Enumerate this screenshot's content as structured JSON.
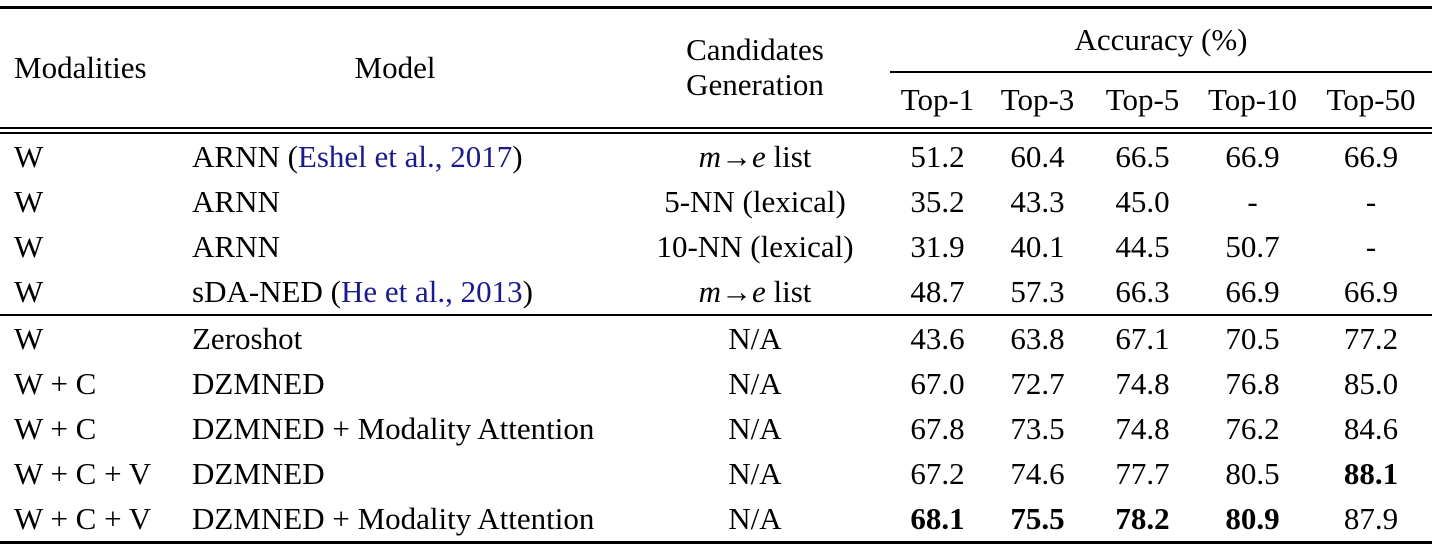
{
  "colors": {
    "background": "#ffffff",
    "text": "#000000",
    "rule": "#000000",
    "citation_link": "#1A1A8C"
  },
  "table": {
    "header": {
      "modalities": "Modalities",
      "model": "Model",
      "candidates_line1": "Candidates",
      "candidates_line2": "Generation",
      "accuracy": "Accuracy (%)",
      "top_columns": [
        "Top-1",
        "Top-3",
        "Top-5",
        "Top-10",
        "Top-50"
      ]
    },
    "rows": [
      {
        "modalities": "W",
        "model_prefix": "ARNN (",
        "model_citation": "Eshel et al., 2017",
        "model_suffix": ")",
        "candidates_parts": [
          {
            "text": "m",
            "italic": true
          },
          {
            "text": "→",
            "italic": false
          },
          {
            "text": "e",
            "italic": true
          },
          {
            "text": " list",
            "italic": false
          }
        ],
        "values": [
          "51.2",
          "60.4",
          "66.5",
          "66.9",
          "66.9"
        ],
        "bold_values": [
          false,
          false,
          false,
          false,
          false
        ],
        "group": 1
      },
      {
        "modalities": "W",
        "model_prefix": "ARNN",
        "model_citation": "",
        "model_suffix": "",
        "candidates_parts": [
          {
            "text": "5-NN (lexical)",
            "italic": false
          }
        ],
        "values": [
          "35.2",
          "43.3",
          "45.0",
          "-",
          "-"
        ],
        "bold_values": [
          false,
          false,
          false,
          false,
          false
        ],
        "group": 1
      },
      {
        "modalities": "W",
        "model_prefix": "ARNN",
        "model_citation": "",
        "model_suffix": "",
        "candidates_parts": [
          {
            "text": "10-NN (lexical)",
            "italic": false
          }
        ],
        "values": [
          "31.9",
          "40.1",
          "44.5",
          "50.7",
          "-"
        ],
        "bold_values": [
          false,
          false,
          false,
          false,
          false
        ],
        "group": 1
      },
      {
        "modalities": "W",
        "model_prefix": "sDA-NED (",
        "model_citation": "He et al., 2013",
        "model_suffix": ")",
        "candidates_parts": [
          {
            "text": "m",
            "italic": true
          },
          {
            "text": "→",
            "italic": false
          },
          {
            "text": "e",
            "italic": true
          },
          {
            "text": " list",
            "italic": false
          }
        ],
        "values": [
          "48.7",
          "57.3",
          "66.3",
          "66.9",
          "66.9"
        ],
        "bold_values": [
          false,
          false,
          false,
          false,
          false
        ],
        "group": 1
      },
      {
        "modalities": "W",
        "model_prefix": "Zeroshot",
        "model_citation": "",
        "model_suffix": "",
        "candidates_parts": [
          {
            "text": "N/A",
            "italic": false
          }
        ],
        "values": [
          "43.6",
          "63.8",
          "67.1",
          "70.5",
          "77.2"
        ],
        "bold_values": [
          false,
          false,
          false,
          false,
          false
        ],
        "group": 2
      },
      {
        "modalities": "W + C",
        "model_prefix": "DZMNED",
        "model_citation": "",
        "model_suffix": "",
        "candidates_parts": [
          {
            "text": "N/A",
            "italic": false
          }
        ],
        "values": [
          "67.0",
          "72.7",
          "74.8",
          "76.8",
          "85.0"
        ],
        "bold_values": [
          false,
          false,
          false,
          false,
          false
        ],
        "group": 2
      },
      {
        "modalities": "W + C",
        "model_prefix": "DZMNED + Modality Attention",
        "model_citation": "",
        "model_suffix": "",
        "candidates_parts": [
          {
            "text": "N/A",
            "italic": false
          }
        ],
        "values": [
          "67.8",
          "73.5",
          "74.8",
          "76.2",
          "84.6"
        ],
        "bold_values": [
          false,
          false,
          false,
          false,
          false
        ],
        "group": 2
      },
      {
        "modalities": "W + C + V",
        "model_prefix": "DZMNED",
        "model_citation": "",
        "model_suffix": "",
        "candidates_parts": [
          {
            "text": "N/A",
            "italic": false
          }
        ],
        "values": [
          "67.2",
          "74.6",
          "77.7",
          "80.5",
          "88.1"
        ],
        "bold_values": [
          false,
          false,
          false,
          false,
          true
        ],
        "group": 2
      },
      {
        "modalities": "W + C + V",
        "model_prefix": "DZMNED + Modality Attention",
        "model_citation": "",
        "model_suffix": "",
        "candidates_parts": [
          {
            "text": "N/A",
            "italic": false
          }
        ],
        "values": [
          "68.1",
          "75.5",
          "78.2",
          "80.9",
          "87.9"
        ],
        "bold_values": [
          true,
          true,
          true,
          true,
          false
        ],
        "group": 2
      }
    ]
  }
}
